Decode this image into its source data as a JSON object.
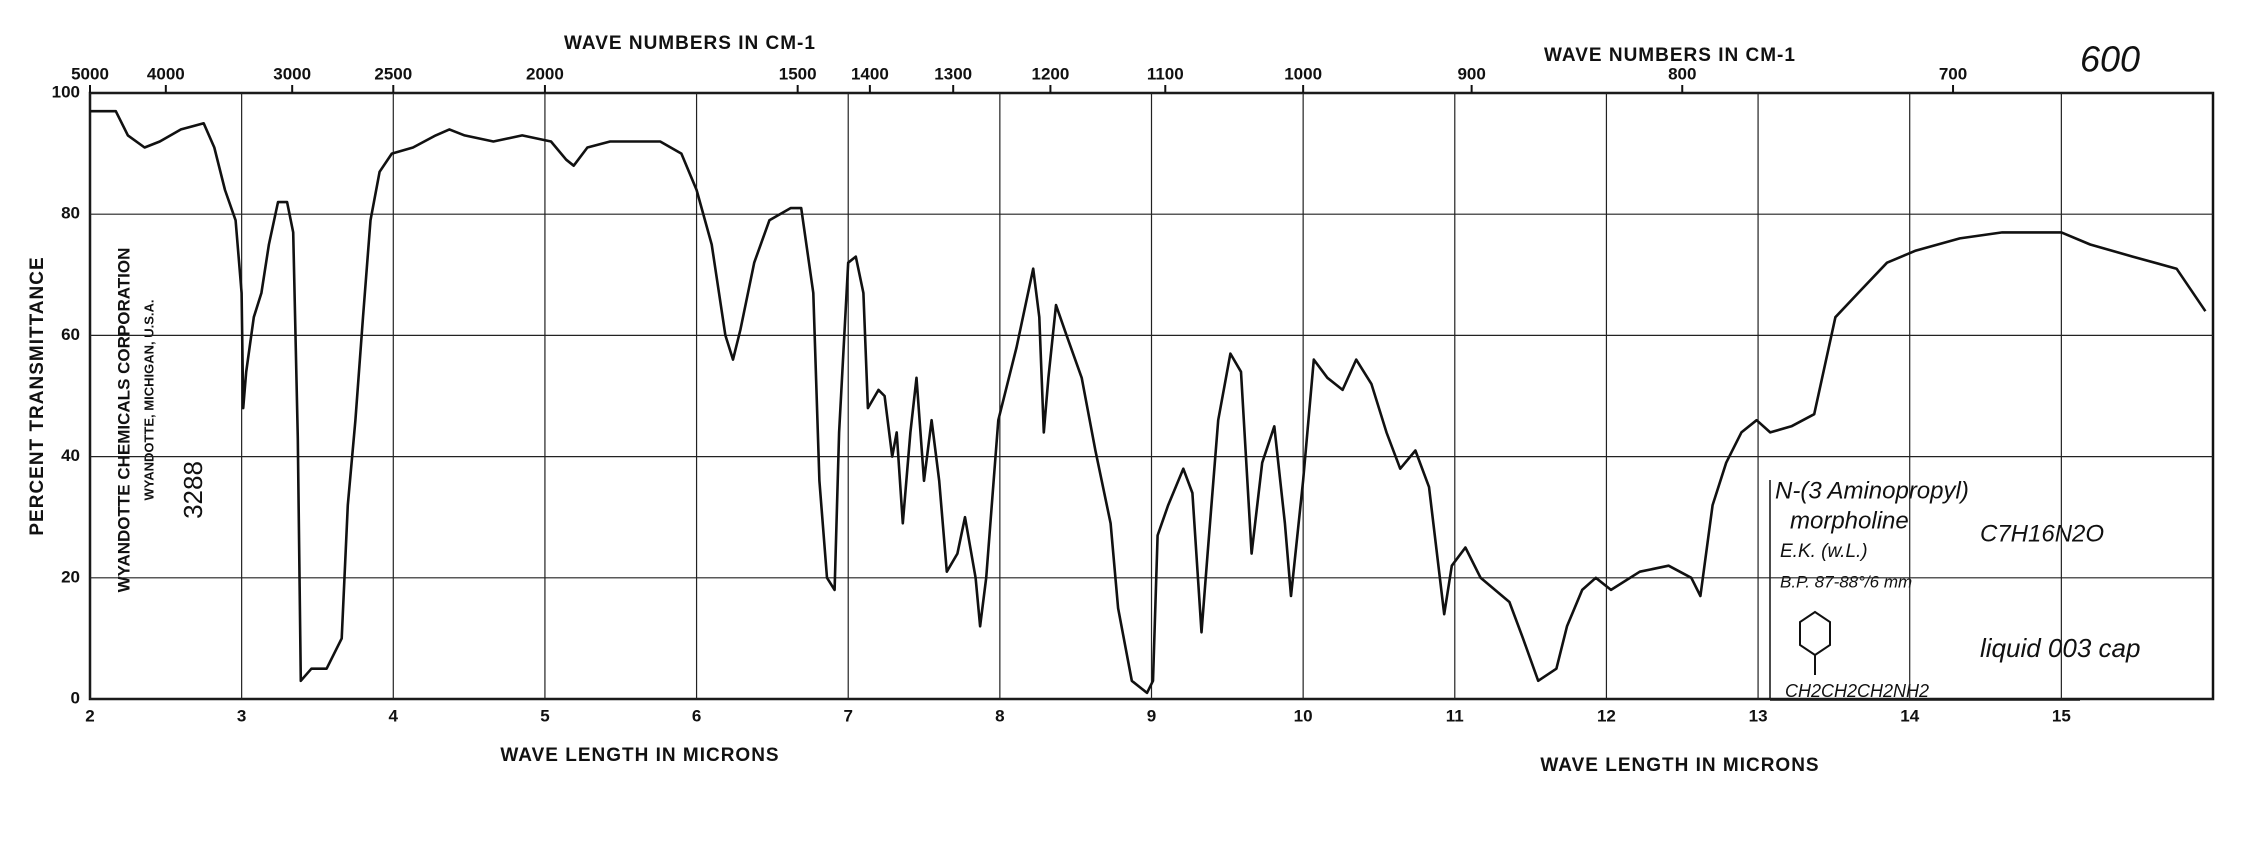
{
  "chart_data": {
    "type": "line",
    "title_top_left": "WAVE NUMBERS IN CM-1",
    "title_top_right": "WAVE NUMBERS IN CM-1",
    "xlabel_left": "WAVE LENGTH IN MICRONS",
    "xlabel_right": "WAVE LENGTH IN MICRONS",
    "ylabel": "PERCENT TRANSMITTANCE",
    "page_number": "600",
    "company": "WYANDOTTE CHEMICALS CORPORATION",
    "company_address": "WYANDOTTE, MICHIGAN, U.S.A.",
    "spectrum_number": "3288",
    "annotations": [
      "N-(3 Aminopropyl)",
      "morpholine",
      "C7H16N2O",
      "E.K. (w.L.)",
      "B.P. 87-88°/6 mm",
      "liquid 003 cap",
      "CH2CH2CH2NH2"
    ],
    "xlim": [
      2,
      16
    ],
    "xticks": [
      2,
      3,
      4,
      5,
      6,
      7,
      8,
      9,
      10,
      11,
      12,
      13,
      14,
      15
    ],
    "x2scale": "reciprocal",
    "x2ticks": [
      5000,
      4000,
      3000,
      2500,
      2000,
      1500,
      1400,
      1300,
      1200,
      1100,
      1000,
      900,
      800,
      700
    ],
    "ylim": [
      0,
      100
    ],
    "yticks": [
      0,
      20,
      40,
      60,
      80,
      100
    ],
    "grid": true,
    "color": "#111111",
    "x": [
      2.0,
      2.17,
      2.25,
      2.36,
      2.46,
      2.6,
      2.75,
      2.82,
      2.89,
      2.96,
      3.0,
      3.01,
      3.03,
      3.08,
      3.13,
      3.18,
      3.24,
      3.3,
      3.34,
      3.37,
      3.39,
      3.46,
      3.56,
      3.66,
      3.7,
      3.75,
      3.8,
      3.85,
      3.91,
      3.99,
      4.13,
      4.28,
      4.37,
      4.47,
      4.66,
      4.85,
      5.04,
      5.14,
      5.19,
      5.28,
      5.43,
      5.57,
      5.76,
      5.9,
      6.0,
      6.1,
      6.19,
      6.24,
      6.29,
      6.38,
      6.48,
      6.62,
      6.69,
      6.77,
      6.81,
      6.86,
      6.91,
      6.94,
      7.0,
      7.05,
      7.1,
      7.13,
      7.2,
      7.24,
      7.29,
      7.32,
      7.36,
      7.41,
      7.45,
      7.5,
      7.55,
      7.6,
      7.65,
      7.72,
      7.77,
      7.84,
      7.87,
      7.91,
      7.99,
      8.11,
      8.22,
      8.26,
      8.29,
      8.32,
      8.37,
      8.44,
      8.54,
      8.63,
      8.73,
      8.78,
      8.87,
      8.97,
      9.01,
      9.04,
      9.11,
      9.21,
      9.27,
      9.33,
      9.37,
      9.44,
      9.52,
      9.59,
      9.66,
      9.73,
      9.81,
      9.88,
      9.92,
      10.0,
      10.07,
      10.16,
      10.26,
      10.35,
      10.45,
      10.55,
      10.64,
      10.74,
      10.83,
      10.93,
      10.98,
      11.07,
      11.17,
      11.36,
      11.45,
      11.55,
      11.67,
      11.74,
      11.84,
      11.93,
      12.03,
      12.22,
      12.41,
      12.56,
      12.62,
      12.7,
      12.79,
      12.89,
      12.99,
      13.08,
      13.22,
      13.37,
      13.51,
      13.66,
      13.85,
      14.04,
      14.33,
      14.61,
      15.0,
      15.19,
      15.47,
      15.76,
      15.95
    ],
    "values": [
      97,
      97,
      93,
      91,
      92,
      94,
      95,
      91,
      84,
      79,
      67,
      48,
      54,
      63,
      67,
      75,
      82,
      82,
      77,
      43,
      3,
      5,
      5,
      10,
      32,
      46,
      63,
      79,
      87,
      90,
      91,
      93,
      94,
      93,
      92,
      93,
      92,
      89,
      88,
      91,
      92,
      92,
      92,
      90,
      84,
      75,
      60,
      56,
      61,
      72,
      79,
      81,
      81,
      67,
      36,
      20,
      18,
      44,
      72,
      73,
      67,
      48,
      51,
      50,
      40,
      44,
      29,
      44,
      53,
      36,
      46,
      36,
      21,
      24,
      30,
      20,
      12,
      20,
      46,
      58,
      71,
      63,
      44,
      53,
      65,
      60,
      53,
      41,
      29,
      15,
      3,
      1,
      3,
      27,
      32,
      38,
      34,
      11,
      24,
      46,
      57,
      54,
      24,
      39,
      45,
      29,
      17,
      36,
      56,
      53,
      51,
      56,
      52,
      44,
      38,
      41,
      35,
      14,
      22,
      25,
      20,
      16,
      10,
      3,
      5,
      12,
      18,
      20,
      18,
      21,
      22,
      20,
      17,
      32,
      39,
      44,
      46,
      44,
      45,
      47,
      63,
      67,
      72,
      74,
      76,
      77,
      77,
      75,
      73,
      71,
      64
    ]
  }
}
